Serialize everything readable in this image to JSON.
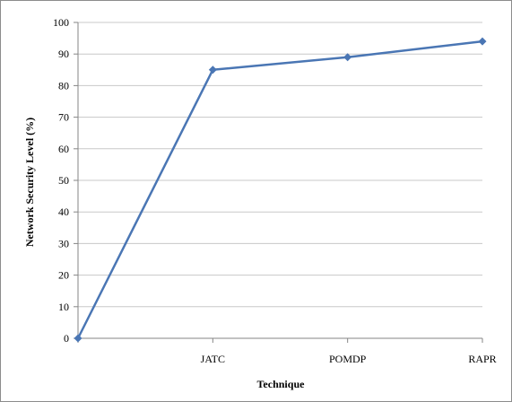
{
  "chart_data": {
    "type": "line",
    "categories": [
      "",
      "JATC",
      "POMDP",
      "RAPR"
    ],
    "series": [
      {
        "values": [
          0,
          85,
          89,
          94
        ],
        "color": "#4a76b4",
        "marker": "diamond"
      }
    ],
    "title": "",
    "xlabel": "Technique",
    "ylabel": "Network Security Level (%)",
    "ylim": [
      0,
      100
    ],
    "yticks": [
      0,
      10,
      20,
      30,
      40,
      50,
      60,
      70,
      80,
      90,
      100
    ],
    "grid": true,
    "legend": "none"
  }
}
